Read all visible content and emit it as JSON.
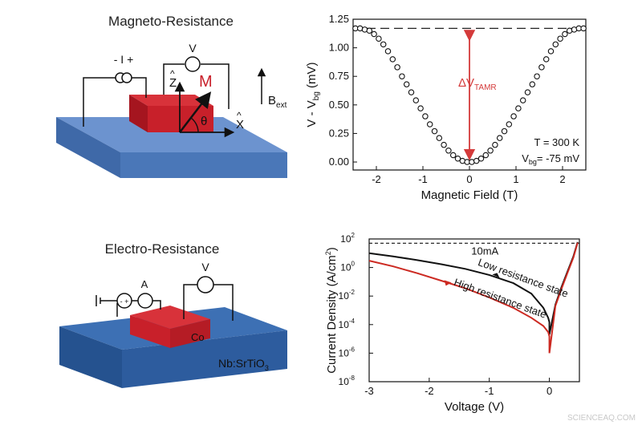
{
  "panels": {
    "magneto": {
      "title": "Magneto-Resistance",
      "current_label": "- I +",
      "voltmeter_label": "V",
      "z_axis_label": "Z",
      "magnetization_label": "M",
      "angle_label": "θ",
      "x_axis_label": "X",
      "field_label": "B",
      "field_label_sub": "ext"
    },
    "electro": {
      "title": "Electro-Resistance",
      "ammeter_label": "A",
      "voltmeter_label": "V",
      "electrode_label": "Co",
      "substrate_label": "Nb:SrTiO",
      "substrate_sub": "3"
    }
  },
  "watermark": "SCIENCEAQ.COM",
  "colors": {
    "substrate": "#4f7ec0",
    "electrode": "#c8202a",
    "accent_red": "#d43a3a",
    "black": "#111111",
    "iv_red": "#cc2a22"
  },
  "chart_data": [
    {
      "type": "scatter",
      "title": "",
      "xlabel": "Magnetic Field (T)",
      "ylabel": "V - V",
      "ylabel_sub": "bg",
      "ylabel_unit": " (mV)",
      "xlim": [
        -2.5,
        2.5
      ],
      "ylim": [
        -0.07,
        1.25
      ],
      "xticks": [
        -2,
        -1,
        0,
        1,
        2
      ],
      "xtick_labels": [
        "-2",
        "-1",
        "0",
        "1",
        "2"
      ],
      "yticks": [
        0.0,
        0.25,
        0.5,
        0.75,
        1.0,
        1.25
      ],
      "ytick_labels": [
        "0.00",
        "0.25",
        "0.50",
        "0.75",
        "1.00",
        "1.25"
      ],
      "grid": false,
      "baseline_value": 1.17,
      "delta_label": "ΔV",
      "delta_label_sub": "TAMR",
      "annotation_T": "T = 300 K",
      "annotation_vbg": "V",
      "annotation_vbg_sub": "bg",
      "annotation_vbg_value": "= -75 mV",
      "series": [
        {
          "x": [
            -2.45,
            -2.35,
            -2.25,
            -2.15,
            -2.05,
            -1.95,
            -1.85,
            -1.75,
            -1.65,
            -1.55,
            -1.45,
            -1.35,
            -1.25,
            -1.15,
            -1.05,
            -0.95,
            -0.85,
            -0.75,
            -0.65,
            -0.55,
            -0.45,
            -0.35,
            -0.25,
            -0.15,
            -0.05,
            0.05,
            0.15,
            0.25,
            0.35,
            0.45,
            0.55,
            0.65,
            0.75,
            0.85,
            0.95,
            1.05,
            1.15,
            1.25,
            1.35,
            1.45,
            1.55,
            1.65,
            1.75,
            1.85,
            1.95,
            2.05,
            2.15,
            2.25,
            2.35,
            2.45
          ],
          "y": [
            1.17,
            1.17,
            1.16,
            1.15,
            1.12,
            1.08,
            1.03,
            0.97,
            0.9,
            0.83,
            0.75,
            0.68,
            0.61,
            0.54,
            0.47,
            0.4,
            0.33,
            0.27,
            0.21,
            0.15,
            0.1,
            0.06,
            0.03,
            0.01,
            0.0,
            0.0,
            0.01,
            0.03,
            0.06,
            0.1,
            0.15,
            0.21,
            0.27,
            0.33,
            0.4,
            0.47,
            0.54,
            0.61,
            0.68,
            0.75,
            0.83,
            0.9,
            0.97,
            1.03,
            1.08,
            1.12,
            1.15,
            1.16,
            1.17,
            1.17
          ]
        }
      ]
    },
    {
      "type": "line",
      "title": "",
      "xlabel": "Voltage (V)",
      "ylabel": "Current Density (A/cm",
      "ylabel_sup": "2",
      "ylabel_end": ")",
      "yscale": "log",
      "xlim": [
        -3,
        0.5
      ],
      "ylim": [
        1e-08,
        100
      ],
      "xticks": [
        -3,
        -2,
        -1,
        0
      ],
      "xtick_labels": [
        "-3",
        "-2",
        "-1",
        "0"
      ],
      "yticks_exponents": [
        -8,
        -6,
        -4,
        -2,
        0,
        2
      ],
      "ytick_base": "10",
      "ytick_labels": [
        "-8",
        "-6",
        "-4",
        "-2",
        "0",
        "2"
      ],
      "grid": false,
      "compliance_value": 50,
      "compliance_label": "10mA",
      "series": [
        {
          "name": "Low resistance state",
          "color": "#111111",
          "x": [
            -3.0,
            -2.6,
            -2.2,
            -1.8,
            -1.4,
            -1.0,
            -0.6,
            -0.3,
            -0.1,
            -0.02,
            0.0,
            0.0,
            0.1,
            0.2,
            0.3,
            0.4,
            0.47
          ],
          "y": [
            10,
            6,
            3.3,
            1.7,
            0.8,
            0.3,
            0.08,
            0.015,
            0.0015,
            0.0003,
            0.00015,
            2e-05,
            0.0025,
            0.04,
            0.5,
            6,
            60
          ]
        },
        {
          "name": "High resistance state",
          "color": "#cc2a22",
          "x": [
            -3.0,
            -2.6,
            -2.2,
            -1.8,
            -1.4,
            -1.0,
            -0.6,
            -0.3,
            -0.1,
            -0.02,
            0.0,
            0.0,
            0.1,
            0.2,
            0.3,
            0.4,
            0.47
          ],
          "y": [
            3,
            1.2,
            0.4,
            0.12,
            0.035,
            0.008,
            0.0015,
            0.0003,
            8e-05,
            3e-05,
            1.5e-05,
            1e-06,
            0.002,
            0.03,
            0.4,
            5,
            55
          ]
        }
      ]
    }
  ]
}
